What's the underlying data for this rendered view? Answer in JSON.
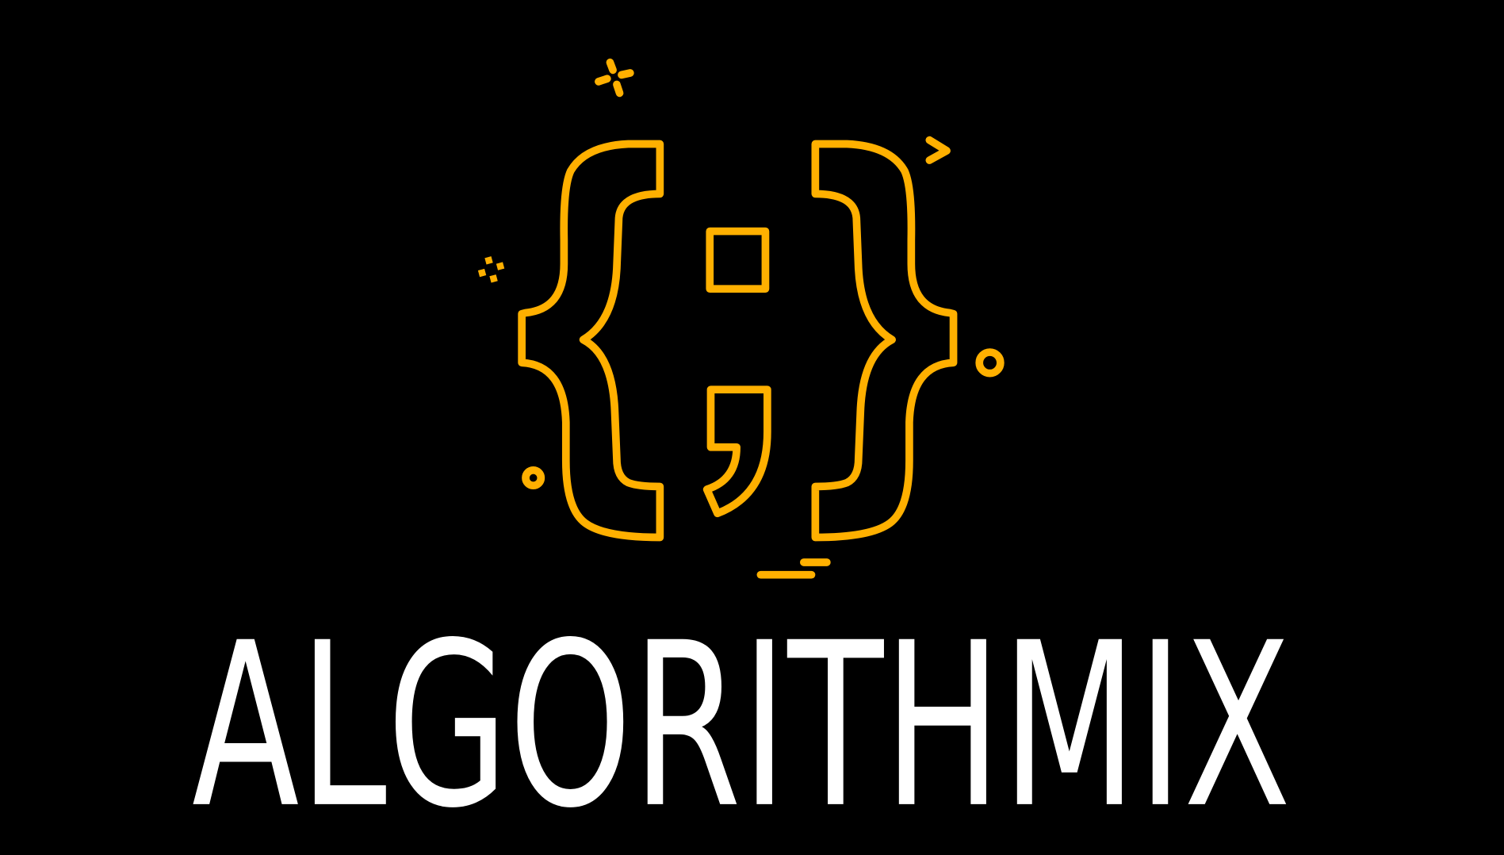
{
  "logo": {
    "wordmark": "ALGORITHMIX"
  }
}
